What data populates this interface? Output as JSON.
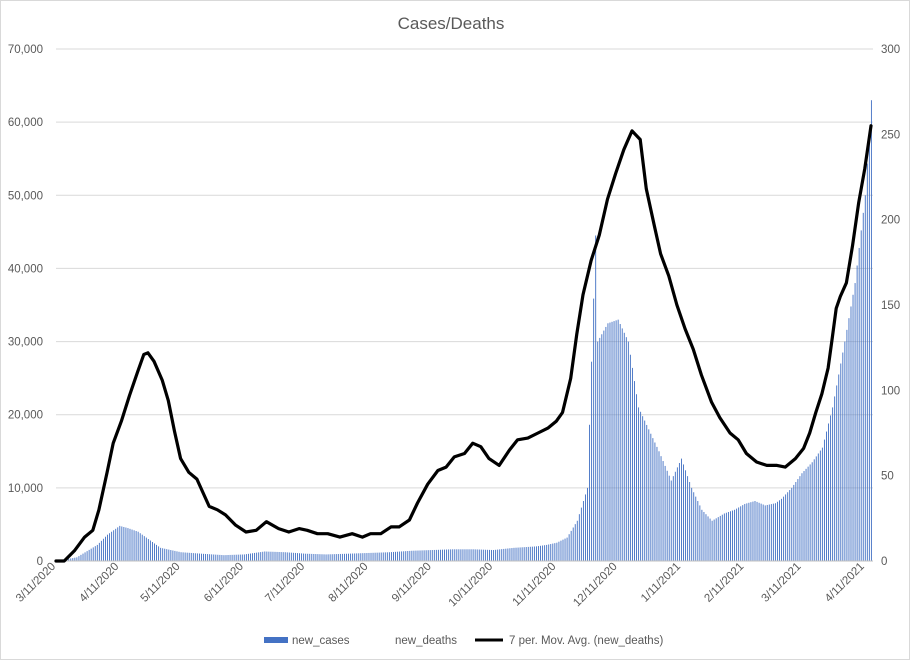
{
  "chart_data": {
    "type": "bar",
    "title": "Cases/Deaths",
    "x_tick_labels": [
      "3/11/2020",
      "4/11/2020",
      "5/11/2020",
      "6/11/2020",
      "7/11/2020",
      "8/11/2020",
      "9/11/2020",
      "10/11/2020",
      "11/11/2020",
      "12/11/2020",
      "1/11/2021",
      "2/11/2021",
      "3/11/2021",
      "4/11/2021"
    ],
    "x_tick_dates": [
      "2020-03-11",
      "2020-04-11",
      "2020-05-11",
      "2020-06-11",
      "2020-07-11",
      "2020-08-11",
      "2020-09-11",
      "2020-10-11",
      "2020-11-11",
      "2020-12-11",
      "2021-01-11",
      "2021-02-11",
      "2021-03-11",
      "2021-04-11"
    ],
    "y_left": {
      "ylim": [
        0,
        70000
      ],
      "ticks": [
        "0",
        "10,000",
        "20,000",
        "30,000",
        "40,000",
        "50,000",
        "60,000",
        "70,000"
      ]
    },
    "y_right": {
      "ylim": [
        0,
        300
      ],
      "ticks": [
        "0",
        "50",
        "100",
        "150",
        "200",
        "250",
        "300"
      ]
    },
    "grid": true,
    "legend_position": "bottom",
    "series": [
      {
        "name": "new_cases",
        "type": "bar",
        "axis": "left",
        "color": "#4472c4",
        "x": [
          "2020-03-11",
          "2020-03-21",
          "2020-03-31",
          "2020-04-05",
          "2020-04-11",
          "2020-04-15",
          "2020-04-20",
          "2020-04-25",
          "2020-05-01",
          "2020-05-06",
          "2020-05-11",
          "2020-05-21",
          "2020-06-01",
          "2020-06-11",
          "2020-06-21",
          "2020-07-01",
          "2020-07-11",
          "2020-07-21",
          "2020-08-01",
          "2020-08-11",
          "2020-08-21",
          "2020-09-01",
          "2020-09-11",
          "2020-09-21",
          "2020-10-01",
          "2020-10-11",
          "2020-10-21",
          "2020-11-01",
          "2020-11-06",
          "2020-11-11",
          "2020-11-16",
          "2020-11-21",
          "2020-11-26",
          "2020-11-30",
          "2020-12-01",
          "2020-12-06",
          "2020-12-11",
          "2020-12-16",
          "2020-12-21",
          "2020-12-26",
          "2020-12-31",
          "2021-01-06",
          "2021-01-11",
          "2021-01-16",
          "2021-01-21",
          "2021-01-26",
          "2021-02-01",
          "2021-02-06",
          "2021-02-11",
          "2021-02-16",
          "2021-02-21",
          "2021-02-26",
          "2021-03-01",
          "2021-03-06",
          "2021-03-11",
          "2021-03-16",
          "2021-03-21",
          "2021-03-26",
          "2021-04-01",
          "2021-04-06",
          "2021-04-11",
          "2021-04-14"
        ],
        "values": [
          0,
          500,
          2200,
          3600,
          4800,
          4500,
          4000,
          3000,
          1800,
          1500,
          1200,
          1000,
          800,
          900,
          1300,
          1200,
          1000,
          900,
          1000,
          1100,
          1200,
          1400,
          1500,
          1600,
          1600,
          1500,
          1800,
          2000,
          2200,
          2500,
          3200,
          5500,
          10000,
          44500,
          30000,
          32500,
          33000,
          30000,
          21000,
          18000,
          15000,
          11000,
          14000,
          10000,
          7000,
          5500,
          6500,
          7000,
          7800,
          8200,
          7600,
          7900,
          8500,
          10000,
          12000,
          13500,
          15500,
          21000,
          30000,
          38000,
          50000,
          63000
        ]
      },
      {
        "name": "new_deaths",
        "type": "bar",
        "axis": "right",
        "color": "#ffffff"
      },
      {
        "name": "7 per. Mov. Avg. (new_deaths)",
        "type": "line",
        "axis": "right",
        "color": "#000000",
        "x": [
          "2020-03-11",
          "2020-03-15",
          "2020-03-20",
          "2020-03-25",
          "2020-03-29",
          "2020-04-01",
          "2020-04-05",
          "2020-04-08",
          "2020-04-12",
          "2020-04-16",
          "2020-04-20",
          "2020-04-23",
          "2020-04-25",
          "2020-04-28",
          "2020-05-02",
          "2020-05-05",
          "2020-05-08",
          "2020-05-11",
          "2020-05-15",
          "2020-05-19",
          "2020-05-25",
          "2020-05-29",
          "2020-06-02",
          "2020-06-07",
          "2020-06-12",
          "2020-06-17",
          "2020-06-22",
          "2020-06-28",
          "2020-07-03",
          "2020-07-08",
          "2020-07-12",
          "2020-07-17",
          "2020-07-22",
          "2020-07-28",
          "2020-08-03",
          "2020-08-08",
          "2020-08-12",
          "2020-08-17",
          "2020-08-22",
          "2020-08-26",
          "2020-08-31",
          "2020-09-04",
          "2020-09-09",
          "2020-09-14",
          "2020-09-18",
          "2020-09-22",
          "2020-09-27",
          "2020-10-01",
          "2020-10-05",
          "2020-10-09",
          "2020-10-14",
          "2020-10-19",
          "2020-10-23",
          "2020-10-28",
          "2020-11-02",
          "2020-11-07",
          "2020-11-11",
          "2020-11-14",
          "2020-11-18",
          "2020-11-21",
          "2020-11-24",
          "2020-11-28",
          "2020-12-02",
          "2020-12-06",
          "2020-12-10",
          "2020-12-14",
          "2020-12-18",
          "2020-12-22",
          "2020-12-25",
          "2020-12-29",
          "2021-01-01",
          "2021-01-05",
          "2021-01-09",
          "2021-01-13",
          "2021-01-17",
          "2021-01-21",
          "2021-01-26",
          "2021-01-30",
          "2021-02-04",
          "2021-02-08",
          "2021-02-12",
          "2021-02-17",
          "2021-02-22",
          "2021-02-27",
          "2021-03-03",
          "2021-03-08",
          "2021-03-12",
          "2021-03-15",
          "2021-03-18",
          "2021-03-21",
          "2021-03-24",
          "2021-03-26",
          "2021-03-28",
          "2021-03-30",
          "2021-04-02",
          "2021-04-05",
          "2021-04-08",
          "2021-04-11",
          "2021-04-14"
        ],
        "values": [
          0,
          0,
          6,
          14,
          18,
          30,
          52,
          69,
          82,
          97,
          111,
          121,
          122,
          117,
          106,
          94,
          76,
          60,
          52,
          48,
          32,
          30,
          27,
          21,
          17,
          18,
          23,
          19,
          17,
          19,
          18,
          16,
          16,
          14,
          16,
          14,
          16,
          16,
          20,
          20,
          24,
          34,
          45,
          53,
          55,
          61,
          63,
          69,
          67,
          60,
          56,
          65,
          71,
          72,
          75,
          78,
          82,
          87,
          107,
          133,
          156,
          176,
          191,
          212,
          227,
          241,
          252,
          247,
          218,
          196,
          180,
          167,
          150,
          136,
          124,
          109,
          93,
          84,
          75,
          71,
          63,
          58,
          56,
          56,
          55,
          60,
          66,
          75,
          87,
          98,
          113,
          130,
          148,
          155,
          163,
          185,
          210,
          230,
          255
        ]
      }
    ]
  }
}
